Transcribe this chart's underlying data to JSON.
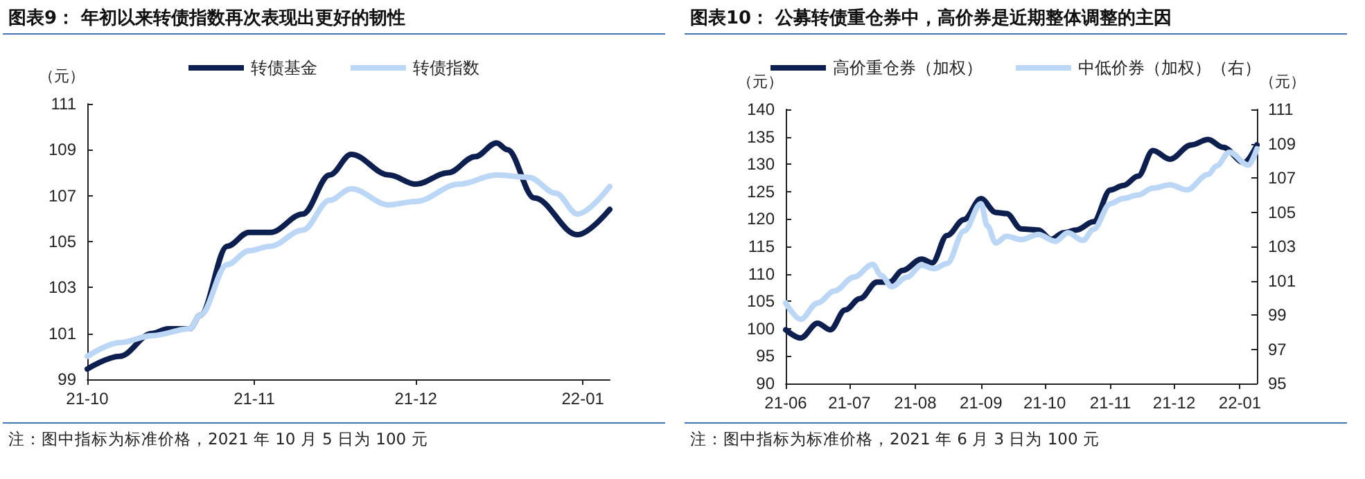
{
  "chart_data": [
    {
      "type": "line",
      "title": "图表9：  年初以来转债指数再次表现出更好的韧性",
      "ylabel": "（元）",
      "legend": "top",
      "marker": "none",
      "grid": false,
      "line_style": "solid",
      "xlim": [
        "2021-10-01",
        "2022-01-06"
      ],
      "xticks": [
        {
          "value": "2021-10-01",
          "label": "21-10"
        },
        {
          "value": "2021-11-01",
          "label": "21-11"
        },
        {
          "value": "2021-12-01",
          "label": "21-12"
        },
        {
          "value": "2022-01-01",
          "label": "22-01"
        }
      ],
      "ylim": [
        99,
        111
      ],
      "yticks": [
        99,
        101,
        103,
        105,
        107,
        109,
        111
      ],
      "series": [
        {
          "name": "转债基金",
          "color": "#0c1f4f",
          "x": [
            "2021-10-01",
            "2021-10-07",
            "2021-10-13",
            "2021-10-16",
            "2021-10-20",
            "2021-10-22",
            "2021-10-27",
            "2021-10-31",
            "2021-11-04",
            "2021-11-10",
            "2021-11-15",
            "2021-11-19",
            "2021-11-26",
            "2021-12-01",
            "2021-12-07",
            "2021-12-12",
            "2021-12-16",
            "2021-12-18",
            "2021-12-23",
            "2021-12-31",
            "2022-01-06"
          ],
          "values": [
            99.45,
            100.0,
            101.0,
            101.2,
            101.2,
            101.8,
            104.8,
            105.4,
            105.4,
            106.2,
            107.9,
            108.8,
            107.9,
            107.5,
            108.0,
            108.7,
            109.3,
            109.0,
            106.9,
            105.3,
            106.4
          ]
        },
        {
          "name": "转债指数",
          "color": "#bcd7f6",
          "x": [
            "2021-10-01",
            "2021-10-07",
            "2021-10-13",
            "2021-10-20",
            "2021-10-22",
            "2021-10-27",
            "2021-10-31",
            "2021-11-04",
            "2021-11-10",
            "2021-11-15",
            "2021-11-19",
            "2021-11-26",
            "2021-12-01",
            "2021-12-09",
            "2021-12-16",
            "2021-12-22",
            "2021-12-27",
            "2021-12-31",
            "2022-01-06"
          ],
          "values": [
            100.0,
            100.6,
            100.9,
            101.2,
            101.8,
            104.0,
            104.6,
            104.8,
            105.5,
            106.8,
            107.3,
            106.6,
            106.75,
            107.5,
            107.9,
            107.8,
            107.1,
            106.2,
            107.4
          ]
        }
      ],
      "annotations": [
        "注：图中指标为标准价格，2021 年 10 月 5 日为 100 元"
      ]
    },
    {
      "type": "line",
      "title": "图表10：  公募转债重仓券中，高价券是近期整体调整的主因",
      "ylabel": "（元）",
      "y2label": "（元）",
      "legend": "top",
      "marker": "none",
      "grid": false,
      "line_style": "solid",
      "xlim": [
        "2021-06-01",
        "2022-01-09"
      ],
      "xticks": [
        {
          "value": "2021-06-01",
          "label": "21-06"
        },
        {
          "value": "2021-07-01",
          "label": "21-07"
        },
        {
          "value": "2021-08-01",
          "label": "21-08"
        },
        {
          "value": "2021-09-01",
          "label": "21-09"
        },
        {
          "value": "2021-10-01",
          "label": "21-10"
        },
        {
          "value": "2021-11-01",
          "label": "21-11"
        },
        {
          "value": "2021-12-01",
          "label": "21-12"
        },
        {
          "value": "2022-01-01",
          "label": "22-01"
        }
      ],
      "ylim": [
        90,
        140
      ],
      "yticks": [
        90,
        95,
        100,
        105,
        110,
        115,
        120,
        125,
        130,
        135,
        140
      ],
      "y2lim": [
        95,
        111
      ],
      "y2ticks": [
        95,
        97,
        99,
        101,
        103,
        105,
        107,
        109,
        111
      ],
      "series": [
        {
          "name": "高价重仓券（加权）",
          "color": "#0c1f4f",
          "x": [
            "2021-06-01",
            "2021-06-08",
            "2021-06-16",
            "2021-06-22",
            "2021-06-29",
            "2021-07-06",
            "2021-07-14",
            "2021-07-20",
            "2021-07-26",
            "2021-08-04",
            "2021-08-09",
            "2021-08-16",
            "2021-08-24",
            "2021-09-01",
            "2021-09-08",
            "2021-09-13",
            "2021-09-20",
            "2021-09-28",
            "2021-10-04",
            "2021-10-10",
            "2021-10-16",
            "2021-10-24",
            "2021-11-01",
            "2021-11-07",
            "2021-11-14",
            "2021-11-21",
            "2021-11-29",
            "2021-12-09",
            "2021-12-17",
            "2021-12-24",
            "2022-01-03",
            "2022-01-09"
          ],
          "values": [
            99.8,
            98.3,
            101.0,
            99.8,
            103.4,
            105.5,
            108.5,
            108.5,
            110.6,
            112.7,
            112.0,
            117.0,
            119.9,
            123.7,
            121.2,
            121.0,
            118.2,
            118.0,
            116.3,
            117.5,
            118.0,
            119.5,
            125.3,
            126.1,
            127.8,
            132.5,
            130.9,
            133.5,
            134.5,
            133.1,
            130.3,
            133.5
          ]
        },
        {
          "name": "中低价券（加权）（右）",
          "color": "#bcd7f6",
          "axis": "y2",
          "x": [
            "2021-06-01",
            "2021-06-08",
            "2021-06-16",
            "2021-06-24",
            "2021-07-03",
            "2021-07-12",
            "2021-07-16",
            "2021-07-21",
            "2021-07-28",
            "2021-08-04",
            "2021-08-10",
            "2021-08-16",
            "2021-08-24",
            "2021-09-01",
            "2021-09-04",
            "2021-09-08",
            "2021-09-13",
            "2021-09-20",
            "2021-09-28",
            "2021-10-06",
            "2021-10-12",
            "2021-10-19",
            "2021-10-24",
            "2021-11-01",
            "2021-11-07",
            "2021-11-14",
            "2021-11-21",
            "2021-11-29",
            "2021-12-07",
            "2021-12-17",
            "2021-12-21",
            "2021-12-27",
            "2022-01-05",
            "2022-01-09"
          ],
          "values": [
            99.7,
            98.75,
            99.7,
            100.4,
            101.2,
            101.95,
            101.3,
            100.65,
            101.2,
            101.9,
            101.7,
            102.0,
            103.9,
            105.5,
            104.2,
            103.2,
            103.6,
            103.4,
            103.7,
            103.3,
            103.8,
            103.35,
            104.0,
            105.5,
            105.8,
            106.0,
            106.4,
            106.6,
            106.3,
            107.2,
            107.7,
            108.5,
            107.75,
            108.7
          ]
        }
      ],
      "annotations": [
        "注：图中指标为标准价格，2021 年 6 月 3 日为 100 元"
      ]
    }
  ]
}
